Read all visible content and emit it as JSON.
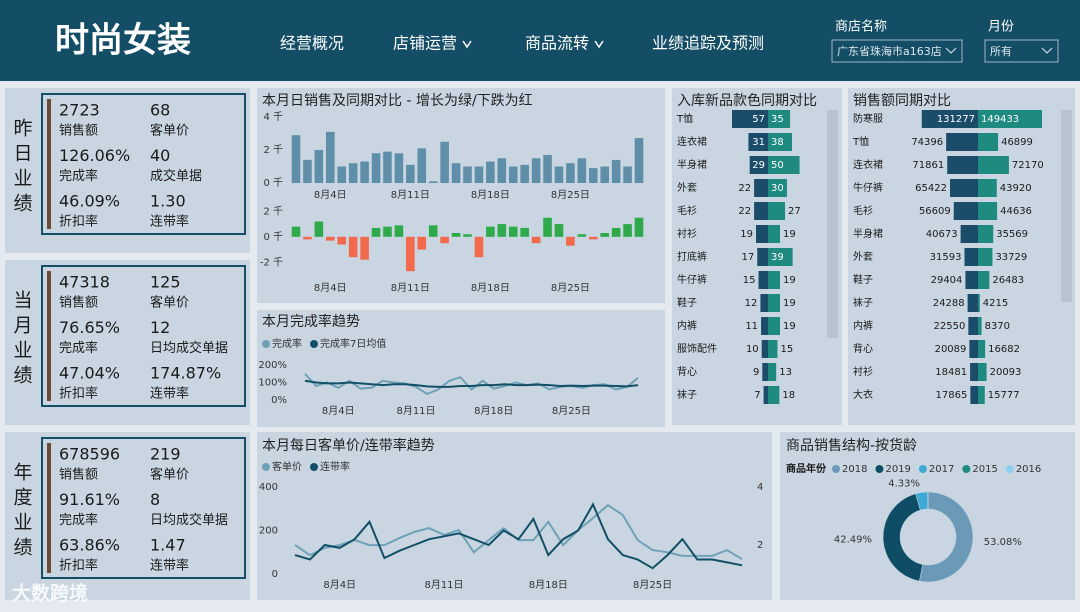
{
  "header": {
    "title": "时尚女装",
    "nav": [
      {
        "label": "经营概况",
        "dropdown": false
      },
      {
        "label": "店铺运营",
        "dropdown": true
      },
      {
        "label": "商品流转",
        "dropdown": true
      },
      {
        "label": "业绩追踪及预测",
        "dropdown": false
      }
    ],
    "filters": [
      {
        "label": "商店名称",
        "value": "广东省珠海市a163店"
      },
      {
        "label": "月份",
        "value": "所有"
      }
    ]
  },
  "kpi_panels": [
    {
      "title": "昨日业绩",
      "metrics": [
        {
          "value": "2723",
          "label": "销售额"
        },
        {
          "value": "68",
          "label": "客单价"
        },
        {
          "value": "126.06%",
          "label": "完成率"
        },
        {
          "value": "40",
          "label": "成交单据"
        },
        {
          "value": "46.09%",
          "label": "折扣率"
        },
        {
          "value": "1.30",
          "label": "连带率"
        }
      ]
    },
    {
      "title": "当月业绩",
      "metrics": [
        {
          "value": "47318",
          "label": "销售额"
        },
        {
          "value": "125",
          "label": "客单价"
        },
        {
          "value": "76.65%",
          "label": "完成率"
        },
        {
          "value": "12",
          "label": "日均成交单据"
        },
        {
          "value": "47.04%",
          "label": "折扣率"
        },
        {
          "value": "174.87%",
          "label": "连带率"
        }
      ]
    },
    {
      "title": "年度业绩",
      "metrics": [
        {
          "value": "678596",
          "label": "销售额"
        },
        {
          "value": "219",
          "label": "客单价"
        },
        {
          "value": "91.61%",
          "label": "完成率"
        },
        {
          "value": "8",
          "label": "日均成交单据"
        },
        {
          "value": "63.86%",
          "label": "折扣率"
        },
        {
          "value": "1.47",
          "label": "连带率"
        }
      ]
    }
  ],
  "chart_data": [
    {
      "type": "bar",
      "title": "本月日销售及同期对比 - 增长为绿/下跌为红",
      "categories": [
        null,
        null,
        null,
        "8月4日",
        null,
        null,
        null,
        null,
        null,
        null,
        "8月11日",
        null,
        null,
        null,
        null,
        null,
        null,
        "8月18日",
        null,
        null,
        null,
        null,
        null,
        null,
        "8月25日",
        null,
        null,
        null,
        null,
        null,
        null
      ],
      "values": [
        2900,
        1400,
        2000,
        3100,
        1000,
        1200,
        1300,
        1800,
        1900,
        1800,
        1100,
        2100,
        100,
        2500,
        1200,
        1000,
        1000,
        1300,
        1500,
        1000,
        1100,
        1500,
        1700,
        1000,
        1200,
        1500,
        900,
        1000,
        1400,
        1000,
        2723
      ],
      "color": "#5f8fa8",
      "ylim": [
        0,
        4000
      ],
      "yticks": [
        {
          "value": 0,
          "label": "0 千"
        },
        {
          "value": 2000,
          "label": "2 千"
        },
        {
          "value": 4000,
          "label": "4 千"
        }
      ]
    },
    {
      "type": "diverging",
      "categories": [
        null,
        null,
        null,
        "8月4日",
        null,
        null,
        null,
        null,
        null,
        null,
        "8月11日",
        null,
        null,
        null,
        null,
        null,
        null,
        "8月18日",
        null,
        null,
        null,
        null,
        null,
        null,
        "8月25日",
        null,
        null,
        null,
        null,
        null,
        null
      ],
      "values": [
        800,
        -200,
        1200,
        -300,
        -600,
        -1600,
        -1800,
        700,
        800,
        900,
        -2700,
        -1000,
        900,
        -500,
        300,
        200,
        -1600,
        800,
        1000,
        800,
        700,
        -500,
        1500,
        1000,
        -700,
        200,
        -200,
        300,
        700,
        1000,
        1500
      ],
      "positive_color": "#2eaa4a",
      "negative_color": "#f26a4b",
      "ylim": [
        -3000,
        2500
      ],
      "yticks": [
        {
          "value": -2000,
          "label": "-2 千"
        },
        {
          "value": 0,
          "label": "0 千"
        },
        {
          "value": 2000,
          "label": "2 千"
        }
      ]
    },
    {
      "type": "line",
      "title": "本月完成率趋势",
      "categories": [
        null,
        null,
        null,
        "8月4日",
        null,
        null,
        null,
        null,
        null,
        null,
        "8月11日",
        null,
        null,
        null,
        null,
        null,
        null,
        "8月18日",
        null,
        null,
        null,
        null,
        null,
        null,
        "8月25日",
        null,
        null,
        null,
        null,
        null,
        null
      ],
      "series": [
        {
          "name": "完成率",
          "color": "#6fa1b6",
          "values": [
            150,
            80,
            100,
            70,
            110,
            65,
            70,
            110,
            100,
            95,
            75,
            35,
            60,
            110,
            130,
            60,
            110,
            65,
            80,
            100,
            85,
            95,
            60,
            75,
            80,
            70,
            85,
            90,
            60,
            75,
            126
          ]
        },
        {
          "name": "完成率7日均值",
          "color": "#134f66",
          "values": [
            110,
            100,
            95,
            95,
            100,
            95,
            90,
            85,
            90,
            90,
            85,
            78,
            75,
            75,
            80,
            80,
            85,
            85,
            90,
            85,
            85,
            88,
            85,
            80,
            82,
            80,
            82,
            82,
            80,
            78,
            85
          ]
        }
      ],
      "ylim": [
        0,
        200
      ],
      "yticks": [
        {
          "value": 0,
          "label": "0%"
        },
        {
          "value": 100,
          "label": "100%"
        },
        {
          "value": 200,
          "label": "200%"
        }
      ]
    },
    {
      "type": "butterfly",
      "title": "入库新品款色同期对比",
      "categories": [
        "T恤",
        "连衣裙",
        "半身裙",
        "外套",
        "毛衫",
        "衬衫",
        "打底裤",
        "牛仔裤",
        "鞋子",
        "内裤",
        "服饰配件",
        "背心",
        "袜子"
      ],
      "series": [
        {
          "color": "#1b4d6b",
          "values": [
            57,
            31,
            29,
            22,
            22,
            19,
            17,
            15,
            12,
            11,
            10,
            9,
            7
          ]
        },
        {
          "color": "#1f8a80",
          "values": [
            35,
            38,
            50,
            30,
            27,
            19,
            39,
            19,
            19,
            19,
            15,
            13,
            18
          ]
        }
      ],
      "scrollbar": true
    },
    {
      "type": "butterfly",
      "title": "销售额同期对比",
      "categories": [
        "防寒服",
        "T恤",
        "连衣裙",
        "牛仔裤",
        "毛衫",
        "半身裙",
        "外套",
        "鞋子",
        "袜子",
        "内裤",
        "背心",
        "衬衫",
        "大衣"
      ],
      "series": [
        {
          "color": "#1b4d6b",
          "values": [
            131277,
            74396,
            71861,
            65422,
            56609,
            40673,
            31593,
            29404,
            24288,
            22550,
            20089,
            18481,
            17865
          ]
        },
        {
          "color": "#1f8a80",
          "values": [
            149433,
            46899,
            72170,
            43920,
            44636,
            35569,
            33729,
            26483,
            4215,
            8370,
            16682,
            20093,
            15777
          ]
        }
      ],
      "scrollbar": true
    },
    {
      "type": "line",
      "title": "本月每日客单价/连带率趋势",
      "categories": [
        null,
        null,
        null,
        "8月4日",
        null,
        null,
        null,
        null,
        null,
        null,
        "8月11日",
        null,
        null,
        null,
        null,
        null,
        null,
        "8月18日",
        null,
        null,
        null,
        null,
        null,
        null,
        "8月25日",
        null,
        null,
        null,
        null,
        null,
        null
      ],
      "series": [
        {
          "name": "客单价",
          "color": "#6fa1b6",
          "values": [
            133,
            87,
            120,
            133,
            156,
            133,
            133,
            165,
            193,
            211,
            180,
            202,
            100,
            156,
            211,
            156,
            156,
            240,
            133,
            202,
            257,
            317,
            271,
            156,
            110,
            100,
            83,
            83,
            83,
            110,
            68
          ]
        },
        {
          "name": "连带率",
          "color": "#134f66",
          "axis": "y2",
          "values": [
            1.65,
            1.5,
            2.0,
            1.9,
            2.2,
            2.8,
            1.55,
            1.8,
            2.0,
            2.2,
            2.3,
            2.4,
            2.2,
            2.0,
            2.5,
            2.2,
            2.9,
            1.65,
            2.2,
            2.5,
            3.4,
            2.2,
            1.65,
            1.5,
            1.2,
            1.65,
            2.2,
            1.5,
            1.5,
            1.4,
            1.3
          ]
        }
      ],
      "ylim": [
        0,
        400
      ],
      "yticks": [
        0,
        200,
        400
      ],
      "y2lim": [
        1,
        4
      ],
      "y2ticks": [
        2,
        4
      ]
    },
    {
      "type": "donut",
      "title": "商品销售结构-按货龄",
      "legend_title": "商品年份",
      "categories": [
        "2018",
        "2019",
        "2017",
        "2015",
        "2016"
      ],
      "values": [
        53.08,
        42.49,
        4.33,
        0.07,
        0.03
      ],
      "value_labels": [
        "53.08%",
        "42.49%",
        "4.33%",
        null,
        null
      ],
      "colors": [
        "#6a9ab8",
        "#0f4c66",
        "#3fa9d6",
        "#1f8a80",
        "#8fd0f0"
      ]
    }
  ],
  "watermark": "大数跨境"
}
